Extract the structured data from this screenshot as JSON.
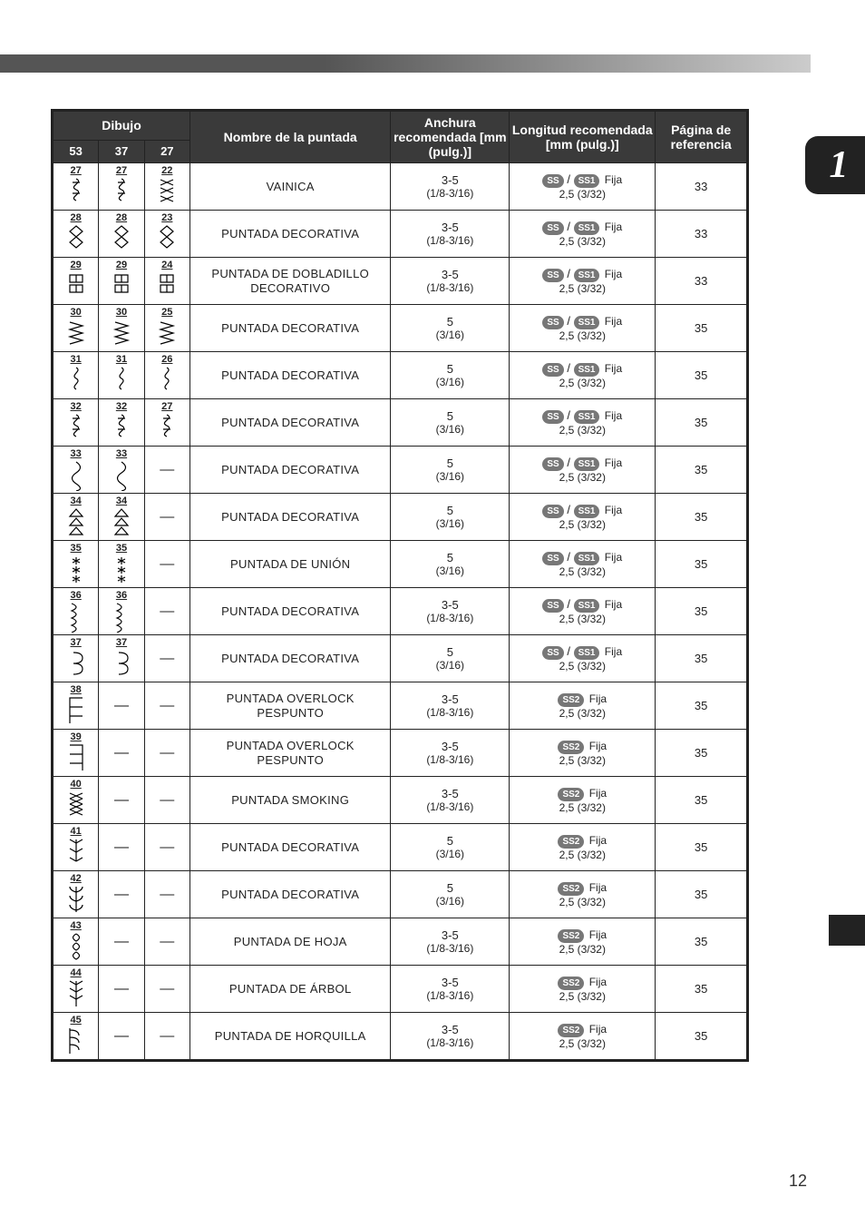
{
  "chapterBadge": "1",
  "pageNumber": "12",
  "headers": {
    "dibujo": "Dibujo",
    "nombre": "Nombre de la puntada",
    "anchura": "Anchura recomendada [mm (pulg.)]",
    "longitud": "Longitud recomendada [mm (pulg.)]",
    "pagina": "Página de referencia",
    "sub": [
      "53",
      "37",
      "27"
    ]
  },
  "rows": [
    {
      "icons": [
        "27",
        "27",
        "22"
      ],
      "name": "VAINICA",
      "w1": "3-5",
      "w2": "(1/8-3/16)",
      "badges": [
        "SS",
        "SS1"
      ],
      "fija": "Fija",
      "l2": "2,5 (3/32)",
      "page": "33"
    },
    {
      "icons": [
        "28",
        "28",
        "23"
      ],
      "name": "PUNTADA DECORATIVA",
      "w1": "3-5",
      "w2": "(1/8-3/16)",
      "badges": [
        "SS",
        "SS1"
      ],
      "fija": "Fija",
      "l2": "2,5 (3/32)",
      "page": "33"
    },
    {
      "icons": [
        "29",
        "29",
        "24"
      ],
      "name": "PUNTADA DE DOBLADILLO DECORATIVO",
      "w1": "3-5",
      "w2": "(1/8-3/16)",
      "badges": [
        "SS",
        "SS1"
      ],
      "fija": "Fija",
      "l2": "2,5 (3/32)",
      "page": "33"
    },
    {
      "icons": [
        "30",
        "30",
        "25"
      ],
      "name": "PUNTADA DECORATIVA",
      "w1": "5",
      "w2": "(3/16)",
      "badges": [
        "SS",
        "SS1"
      ],
      "fija": "Fija",
      "l2": "2,5 (3/32)",
      "page": "35"
    },
    {
      "icons": [
        "31",
        "31",
        "26"
      ],
      "name": "PUNTADA DECORATIVA",
      "w1": "5",
      "w2": "(3/16)",
      "badges": [
        "SS",
        "SS1"
      ],
      "fija": "Fija",
      "l2": "2,5 (3/32)",
      "page": "35"
    },
    {
      "icons": [
        "32",
        "32",
        "27"
      ],
      "name": "PUNTADA DECORATIVA",
      "w1": "5",
      "w2": "(3/16)",
      "badges": [
        "SS",
        "SS1"
      ],
      "fija": "Fija",
      "l2": "2,5 (3/32)",
      "page": "35"
    },
    {
      "icons": [
        "33",
        "33",
        null
      ],
      "name": "PUNTADA DECORATIVA",
      "w1": "5",
      "w2": "(3/16)",
      "badges": [
        "SS",
        "SS1"
      ],
      "fija": "Fija",
      "l2": "2,5 (3/32)",
      "page": "35"
    },
    {
      "icons": [
        "34",
        "34",
        null
      ],
      "name": "PUNTADA DECORATIVA",
      "w1": "5",
      "w2": "(3/16)",
      "badges": [
        "SS",
        "SS1"
      ],
      "fija": "Fija",
      "l2": "2,5 (3/32)",
      "page": "35"
    },
    {
      "icons": [
        "35",
        "35",
        null
      ],
      "name": "PUNTADA DE UNIÓN",
      "w1": "5",
      "w2": "(3/16)",
      "badges": [
        "SS",
        "SS1"
      ],
      "fija": "Fija",
      "l2": "2,5 (3/32)",
      "page": "35"
    },
    {
      "icons": [
        "36",
        "36",
        null
      ],
      "name": "PUNTADA DECORATIVA",
      "w1": "3-5",
      "w2": "(1/8-3/16)",
      "badges": [
        "SS",
        "SS1"
      ],
      "fija": "Fija",
      "l2": "2,5 (3/32)",
      "page": "35"
    },
    {
      "icons": [
        "37",
        "37",
        null
      ],
      "name": "PUNTADA DECORATIVA",
      "w1": "5",
      "w2": "(3/16)",
      "badges": [
        "SS",
        "SS1"
      ],
      "fija": "Fija",
      "l2": "2,5 (3/32)",
      "page": "35"
    },
    {
      "icons": [
        "38",
        null,
        null
      ],
      "name": "PUNTADA OVERLOCK PESPUNTO",
      "w1": "3-5",
      "w2": "(1/8-3/16)",
      "badges": [
        "SS2"
      ],
      "fija": "Fija",
      "l2": "2,5 (3/32)",
      "page": "35"
    },
    {
      "icons": [
        "39",
        null,
        null
      ],
      "name": "PUNTADA OVERLOCK PESPUNTO",
      "w1": "3-5",
      "w2": "(1/8-3/16)",
      "badges": [
        "SS2"
      ],
      "fija": "Fija",
      "l2": "2,5 (3/32)",
      "page": "35"
    },
    {
      "icons": [
        "40",
        null,
        null
      ],
      "name": "PUNTADA SMOKING",
      "w1": "3-5",
      "w2": "(1/8-3/16)",
      "badges": [
        "SS2"
      ],
      "fija": "Fija",
      "l2": "2,5 (3/32)",
      "page": "35"
    },
    {
      "icons": [
        "41",
        null,
        null
      ],
      "name": "PUNTADA DECORATIVA",
      "w1": "5",
      "w2": "(3/16)",
      "badges": [
        "SS2"
      ],
      "fija": "Fija",
      "l2": "2,5 (3/32)",
      "page": "35"
    },
    {
      "icons": [
        "42",
        null,
        null
      ],
      "name": "PUNTADA DECORATIVA",
      "w1": "5",
      "w2": "(3/16)",
      "badges": [
        "SS2"
      ],
      "fija": "Fija",
      "l2": "2,5 (3/32)",
      "page": "35"
    },
    {
      "icons": [
        "43",
        null,
        null
      ],
      "name": "PUNTADA DE HOJA",
      "w1": "3-5",
      "w2": "(1/8-3/16)",
      "badges": [
        "SS2"
      ],
      "fija": "Fija",
      "l2": "2,5 (3/32)",
      "page": "35"
    },
    {
      "icons": [
        "44",
        null,
        null
      ],
      "name": "PUNTADA DE ÁRBOL",
      "w1": "3-5",
      "w2": "(1/8-3/16)",
      "badges": [
        "SS2"
      ],
      "fija": "Fija",
      "l2": "2,5 (3/32)",
      "page": "35"
    },
    {
      "icons": [
        "45",
        null,
        null
      ],
      "name": "PUNTADA DE HORQUILLA",
      "w1": "3-5",
      "w2": "(1/8-3/16)",
      "badges": [
        "SS2"
      ],
      "fija": "Fija",
      "l2": "2,5 (3/32)",
      "page": "35"
    }
  ],
  "stitchGlyphs": {
    "22": "xox",
    "23": "dia",
    "24": "hex",
    "25": "saw",
    "26": "zig",
    "27": "zigb",
    "28": "dia",
    "29": "hex",
    "30": "saw",
    "31": "zig",
    "32": "zigb",
    "33": "curl",
    "34": "tri",
    "35": "star",
    "36": "wavy",
    "37": "loop",
    "38": "over1",
    "39": "over2",
    "40": "cross",
    "41": "fan",
    "42": "fan2",
    "43": "leaf",
    "44": "tree",
    "45": "fork"
  }
}
